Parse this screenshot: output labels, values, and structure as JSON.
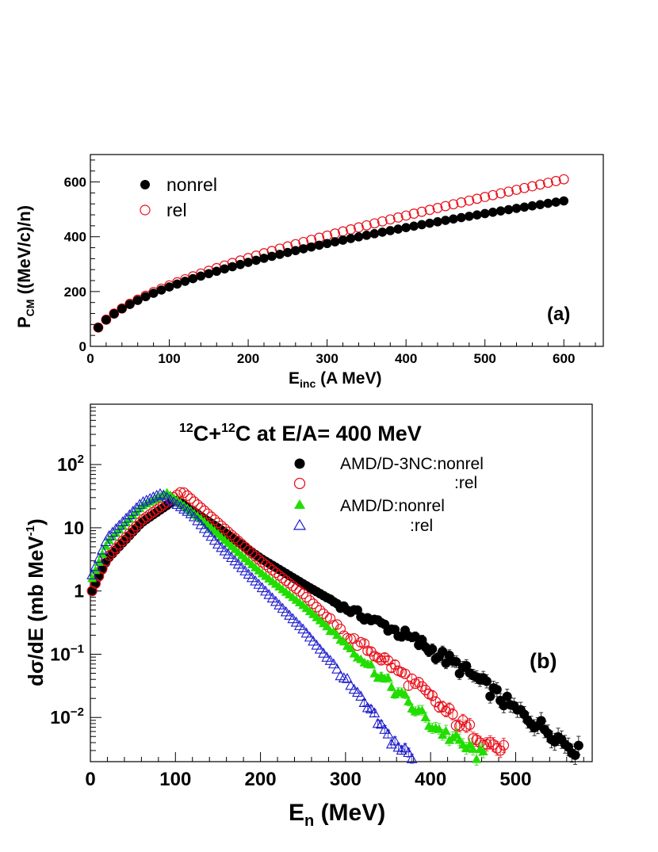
{
  "colors": {
    "black": "#000000",
    "red": "#e8101a",
    "green": "#22dd00",
    "blue": "#1a1acc"
  },
  "chart_data": [
    {
      "type": "scatter",
      "panel_label": "(a)",
      "ylabel_main": "P",
      "ylabel_sub": "CM",
      "ylabel_rest": " ((MeV/c)/n)",
      "xlabel_main": "E",
      "xlabel_sub": "inc",
      "xlabel_rest": " (A MeV)",
      "xlim": [
        0,
        650
      ],
      "ylim": [
        0,
        700
      ],
      "xticks": [
        "0",
        "100",
        "200",
        "300",
        "400",
        "500",
        "600"
      ],
      "yticks": [
        "0",
        "200",
        "400",
        "600"
      ],
      "legend": [
        {
          "label": "nonrel",
          "marker": "filled-circle",
          "color": "#000000"
        },
        {
          "label": "rel",
          "marker": "open-circle",
          "color": "#e8101a"
        }
      ],
      "series": [
        {
          "name": "nonrel",
          "x_start": 10,
          "x_step": 10,
          "x_end": 600,
          "model": "p = 21.67*sqrt(E)",
          "y_at_10": 69,
          "y_at_100": 217,
          "y_at_600": 531
        },
        {
          "name": "rel",
          "x_start": 10,
          "x_step": 10,
          "x_end": 600,
          "model": "p = sqrt(E*(E+1878)/4)",
          "y_at_10": 69,
          "y_at_100": 221,
          "y_at_600": 607
        }
      ]
    },
    {
      "type": "scatter",
      "panel_label": "(b)",
      "title_parts": [
        "12",
        "C+",
        "12",
        "C at E/A= 400 MeV"
      ],
      "ylabel": "dσ/dE (mb MeV",
      "ylabel_sup": "-1",
      "ylabel_end": ")",
      "xlabel_main": "E",
      "xlabel_sub": "n",
      "xlabel_rest": " (MeV)",
      "xlim": [
        0,
        590
      ],
      "ylim_log": [
        0.002,
        900
      ],
      "yscale": "log",
      "xticks": [
        "0",
        "100",
        "200",
        "300",
        "400",
        "500"
      ],
      "yticks": [
        {
          "value": 0.01,
          "base": "10",
          "sup": "−2"
        },
        {
          "value": 0.1,
          "base": "10",
          "sup": "−1"
        },
        {
          "value": 1,
          "base": "1",
          "sup": ""
        },
        {
          "value": 10,
          "base": "10",
          "sup": ""
        },
        {
          "value": 100,
          "base": "10",
          "sup": "2"
        }
      ],
      "legend": [
        {
          "label": "AMD/D-3NC:nonrel",
          "marker": "filled-circle",
          "color": "#000000"
        },
        {
          "label": ":rel",
          "marker": "open-circle",
          "color": "#e8101a"
        },
        {
          "label": "AMD/D:nonrel",
          "marker": "filled-triangle",
          "color": "#22dd00"
        },
        {
          "label": ":rel",
          "marker": "open-triangle",
          "color": "#1a1acc"
        }
      ],
      "series": [
        {
          "name": "AMD/D-3NC:nonrel",
          "peak_x": 100,
          "peak_y": 28,
          "start_y": 1.0,
          "y_at_300": 0.53,
          "y_at_500": 0.013,
          "end_x": 580,
          "end_y": 0.0025
        },
        {
          "name": "AMD/D-3NC:rel",
          "peak_x": 108,
          "peak_y": 38,
          "start_y": 1.0,
          "y_at_300": 0.2,
          "y_at_400": 0.02,
          "end_x": 488,
          "end_y": 0.0028
        },
        {
          "name": "AMD/D:nonrel",
          "peak_x": 90,
          "peak_y": 36,
          "start_y": 1.6,
          "y_at_300": 0.15,
          "y_at_400": 0.008,
          "end_x": 463,
          "end_y": 0.0023
        },
        {
          "name": "AMD/D:rel",
          "peak_x": 83,
          "peak_y": 35,
          "start_y": 1.8,
          "y_at_300": 0.04,
          "y_at_350": 0.004,
          "end_x": 380,
          "end_y": 0.0022
        }
      ]
    }
  ]
}
